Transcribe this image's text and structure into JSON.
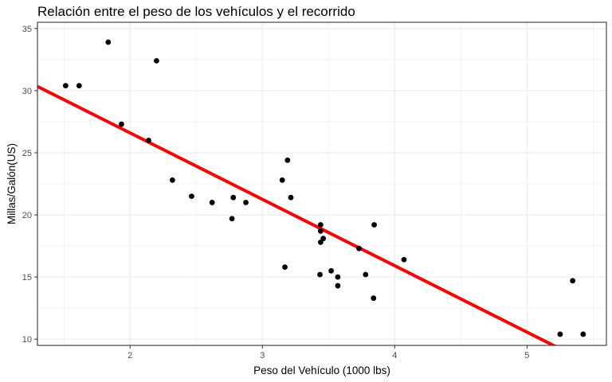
{
  "chart_data": {
    "type": "scatter",
    "title": "Relación entre el peso de los vehículos y el recorrido",
    "xlabel": "Peso del Vehículo (1000 lbs)",
    "ylabel": "Millas/Galón(US)",
    "xlim": [
      1.3,
      5.6
    ],
    "ylim": [
      9.5,
      35.5
    ],
    "x_ticks": [
      2,
      3,
      4,
      5
    ],
    "y_ticks": [
      10,
      15,
      20,
      25,
      30,
      35
    ],
    "grid": true,
    "legend": "none",
    "points": [
      {
        "x": 2.62,
        "y": 21.0
      },
      {
        "x": 2.875,
        "y": 21.0
      },
      {
        "x": 2.32,
        "y": 22.8
      },
      {
        "x": 3.215,
        "y": 21.4
      },
      {
        "x": 3.44,
        "y": 18.7
      },
      {
        "x": 3.46,
        "y": 18.1
      },
      {
        "x": 3.57,
        "y": 14.3
      },
      {
        "x": 3.19,
        "y": 24.4
      },
      {
        "x": 3.15,
        "y": 22.8
      },
      {
        "x": 3.44,
        "y": 19.2
      },
      {
        "x": 3.44,
        "y": 17.8
      },
      {
        "x": 4.07,
        "y": 16.4
      },
      {
        "x": 3.73,
        "y": 17.3
      },
      {
        "x": 3.78,
        "y": 15.2
      },
      {
        "x": 5.25,
        "y": 10.4
      },
      {
        "x": 5.424,
        "y": 10.4
      },
      {
        "x": 5.345,
        "y": 14.7
      },
      {
        "x": 2.2,
        "y": 32.4
      },
      {
        "x": 1.615,
        "y": 30.4
      },
      {
        "x": 1.835,
        "y": 33.9
      },
      {
        "x": 2.465,
        "y": 21.5
      },
      {
        "x": 3.52,
        "y": 15.5
      },
      {
        "x": 3.435,
        "y": 15.2
      },
      {
        "x": 3.84,
        "y": 13.3
      },
      {
        "x": 3.845,
        "y": 19.2
      },
      {
        "x": 1.935,
        "y": 27.3
      },
      {
        "x": 2.14,
        "y": 26.0
      },
      {
        "x": 1.513,
        "y": 30.4
      },
      {
        "x": 3.17,
        "y": 15.8
      },
      {
        "x": 2.77,
        "y": 19.7
      },
      {
        "x": 3.57,
        "y": 15.0
      },
      {
        "x": 2.78,
        "y": 21.4
      }
    ],
    "fit_line": {
      "intercept": 37.285,
      "slope": -5.344,
      "color": "#ff0000"
    },
    "point_color": "#000000",
    "grid_color": "#ebebeb",
    "axis_color": "#333333"
  }
}
